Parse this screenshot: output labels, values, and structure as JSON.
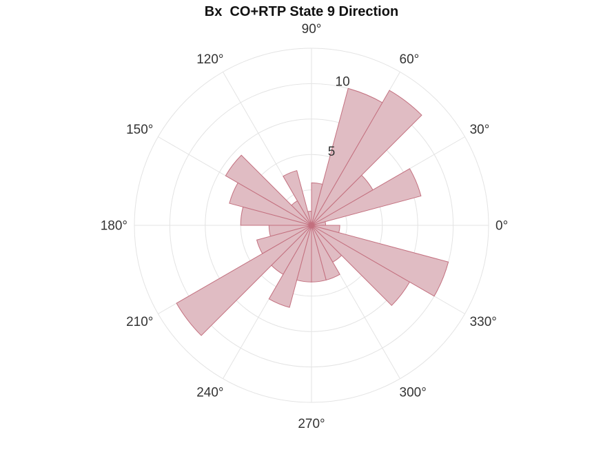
{
  "title": "Bx  CO+RTP State 9 Direction",
  "colors": {
    "bar_fill": "#e0bcc3",
    "bar_edge": "#c3707f",
    "grid": "#e3e3e3",
    "text": "#333333"
  },
  "chart_data": {
    "type": "polar-histogram",
    "title": "Bx  CO+RTP State 9 Direction",
    "bin_width_deg": 15,
    "theta_direction": "counterclockwise",
    "theta_zero": "right",
    "bins": [
      {
        "start": 0,
        "end": 15,
        "value": 1
      },
      {
        "start": 15,
        "end": 30,
        "value": 8
      },
      {
        "start": 30,
        "end": 45,
        "value": 5
      },
      {
        "start": 45,
        "end": 60,
        "value": 11
      },
      {
        "start": 60,
        "end": 75,
        "value": 10
      },
      {
        "start": 75,
        "end": 90,
        "value": 3
      },
      {
        "start": 90,
        "end": 105,
        "value": 1
      },
      {
        "start": 105,
        "end": 120,
        "value": 4
      },
      {
        "start": 120,
        "end": 135,
        "value": 2
      },
      {
        "start": 135,
        "end": 150,
        "value": 7
      },
      {
        "start": 150,
        "end": 165,
        "value": 6
      },
      {
        "start": 165,
        "end": 180,
        "value": 5
      },
      {
        "start": 180,
        "end": 195,
        "value": 3
      },
      {
        "start": 195,
        "end": 210,
        "value": 4
      },
      {
        "start": 210,
        "end": 225,
        "value": 11
      },
      {
        "start": 225,
        "end": 240,
        "value": 4
      },
      {
        "start": 240,
        "end": 255,
        "value": 6
      },
      {
        "start": 255,
        "end": 270,
        "value": 4
      },
      {
        "start": 270,
        "end": 285,
        "value": 4
      },
      {
        "start": 285,
        "end": 300,
        "value": 4
      },
      {
        "start": 300,
        "end": 315,
        "value": 3
      },
      {
        "start": 315,
        "end": 330,
        "value": 8
      },
      {
        "start": 330,
        "end": 345,
        "value": 10
      },
      {
        "start": 345,
        "end": 360,
        "value": 2
      }
    ],
    "angle_ticks": [
      {
        "deg": 0,
        "label": "0°"
      },
      {
        "deg": 30,
        "label": "30°"
      },
      {
        "deg": 60,
        "label": "60°"
      },
      {
        "deg": 90,
        "label": "90°"
      },
      {
        "deg": 120,
        "label": "120°"
      },
      {
        "deg": 150,
        "label": "150°"
      },
      {
        "deg": 180,
        "label": "180°"
      },
      {
        "deg": 210,
        "label": "210°"
      },
      {
        "deg": 240,
        "label": "240°"
      },
      {
        "deg": 270,
        "label": "270°"
      },
      {
        "deg": 300,
        "label": "300°"
      },
      {
        "deg": 330,
        "label": "330°"
      }
    ],
    "radial_ticks": [
      {
        "value": 5,
        "label": "5"
      },
      {
        "value": 10,
        "label": "10"
      }
    ],
    "rlim": [
      0,
      12.5
    ],
    "grid": true
  }
}
